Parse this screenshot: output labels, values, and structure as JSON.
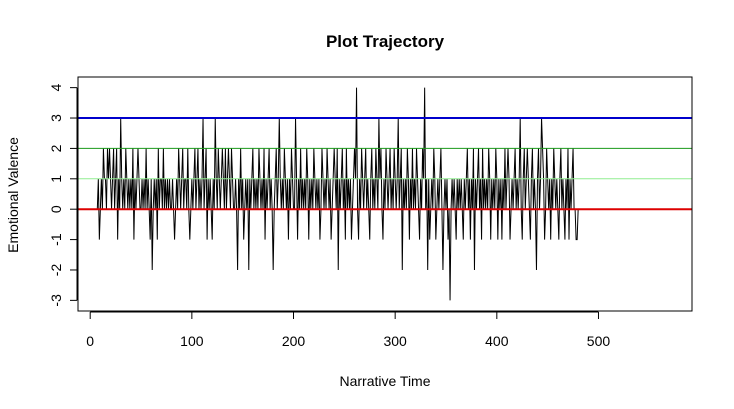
{
  "chart_data": {
    "type": "line",
    "title": "Plot Trajectory",
    "xlabel": "Narrative Time",
    "ylabel": "Emotional Valence",
    "xlim": [
      -12,
      592
    ],
    "ylim": [
      -3.35,
      4.35
    ],
    "x_ticks": [
      0,
      100,
      200,
      300,
      400,
      500
    ],
    "y_ticks": [
      -3,
      -2,
      -1,
      0,
      1,
      2,
      3,
      4
    ],
    "grid": false,
    "legend": "none",
    "reference_lines": [
      {
        "y": 3,
        "color": "#0000cc"
      },
      {
        "y": 2,
        "color": "#1a9a1a"
      },
      {
        "y": 1,
        "color": "#90ee90"
      },
      {
        "y": 0,
        "color": "#dd0000"
      }
    ],
    "series": [
      {
        "color": "#000000",
        "x_start": 1,
        "x_step": 1,
        "values": [
          0,
          0,
          0,
          0,
          0,
          0,
          0,
          1,
          -1,
          0,
          1,
          0,
          2,
          1,
          1,
          0,
          2,
          1,
          2,
          1,
          0,
          1,
          2,
          0,
          1,
          2,
          -1,
          1,
          0,
          3,
          1,
          0,
          1,
          0,
          2,
          1,
          0,
          1,
          0,
          1,
          0,
          2,
          -1,
          1,
          0,
          1,
          2,
          1,
          0,
          0,
          1,
          0,
          1,
          0,
          2,
          0,
          1,
          0,
          -1,
          1,
          -2,
          0,
          1,
          0,
          1,
          -1,
          2,
          0,
          1,
          1,
          0,
          2,
          0,
          1,
          0,
          1,
          0,
          1,
          0,
          0,
          1,
          0,
          -1,
          0,
          1,
          0,
          2,
          1,
          0,
          1,
          2,
          0,
          1,
          1,
          0,
          2,
          0,
          -1,
          0,
          1,
          0,
          1,
          2,
          0,
          1,
          2,
          0,
          1,
          0,
          1,
          3,
          0,
          1,
          2,
          -1,
          1,
          0,
          1,
          0,
          -1,
          1,
          0,
          3,
          1,
          0,
          2,
          1,
          0,
          1,
          2,
          1,
          0,
          2,
          0,
          1,
          2,
          1,
          0,
          2,
          1,
          0,
          0,
          1,
          0,
          -2,
          1,
          0,
          2,
          0,
          1,
          -1,
          0,
          1,
          0,
          1,
          -2,
          1,
          0,
          1,
          2,
          0,
          1,
          0,
          1,
          0,
          2,
          1,
          0,
          1,
          0,
          2,
          -1,
          1,
          0,
          1,
          2,
          0,
          1,
          0,
          -2,
          0,
          1,
          2,
          0,
          1,
          3,
          1,
          0,
          1,
          0,
          2,
          1,
          0,
          1,
          -1,
          1,
          0,
          2,
          1,
          0,
          0,
          3,
          1,
          -1,
          1,
          0,
          2,
          0,
          1,
          0,
          1,
          0,
          2,
          1,
          -1,
          1,
          0,
          1,
          0,
          2,
          1,
          0,
          1,
          0,
          1,
          -1,
          0,
          2,
          1,
          0,
          1,
          0,
          2,
          1,
          0,
          1,
          -1,
          0,
          1,
          2,
          1,
          0,
          2,
          -2,
          1,
          0,
          1,
          2,
          0,
          1,
          -1,
          2,
          0,
          1,
          0,
          1,
          -1,
          0,
          1,
          2,
          1,
          4,
          0,
          -1,
          1,
          0,
          2,
          1,
          0,
          1,
          2,
          0,
          1,
          0,
          -1,
          1,
          2,
          0,
          1,
          0,
          2,
          1,
          0,
          3,
          1,
          2,
          0,
          -1,
          1,
          0,
          2,
          1,
          0,
          1,
          2,
          0,
          1,
          0,
          2,
          1,
          0,
          1,
          3,
          0,
          1,
          2,
          -2,
          1,
          0,
          1,
          0,
          2,
          1,
          -1,
          1,
          0,
          2,
          0,
          1,
          0,
          2,
          1,
          0,
          -1,
          1,
          0,
          2,
          1,
          4,
          0,
          1,
          -2,
          1,
          -1,
          0,
          1,
          0,
          2,
          1,
          -1,
          0,
          1,
          0,
          1,
          2,
          0,
          -2,
          0,
          1,
          0,
          1,
          -1,
          0,
          -3,
          0,
          1,
          0,
          1,
          0,
          -1,
          1,
          0,
          1,
          0,
          1,
          0,
          -1,
          1,
          0,
          1,
          2,
          0,
          1,
          -1,
          1,
          0,
          2,
          -2,
          1,
          0,
          1,
          2,
          0,
          1,
          -1,
          2,
          0,
          1,
          0,
          1,
          0,
          2,
          1,
          -1,
          1,
          0,
          1,
          0,
          2,
          1,
          -1,
          1,
          0,
          1,
          -1,
          1,
          0,
          2,
          0,
          1,
          2,
          1,
          -1,
          0,
          1,
          0,
          1,
          2,
          0,
          1,
          0,
          1,
          3,
          0,
          -1,
          1,
          2,
          0,
          1,
          2,
          1,
          0,
          -1,
          1,
          2,
          0,
          1,
          0,
          -2,
          1,
          2,
          0,
          1,
          3,
          2,
          1,
          -1,
          0,
          2,
          1,
          0,
          1,
          -1,
          1,
          0,
          2,
          1,
          0,
          1,
          0,
          -1,
          1,
          2,
          0,
          1,
          0,
          -1,
          1,
          0,
          2,
          -1,
          1,
          0,
          1,
          2,
          0,
          0,
          -1,
          -1,
          0,
          0,
          0,
          0,
          0,
          0,
          0,
          0,
          0
        ]
      }
    ]
  }
}
